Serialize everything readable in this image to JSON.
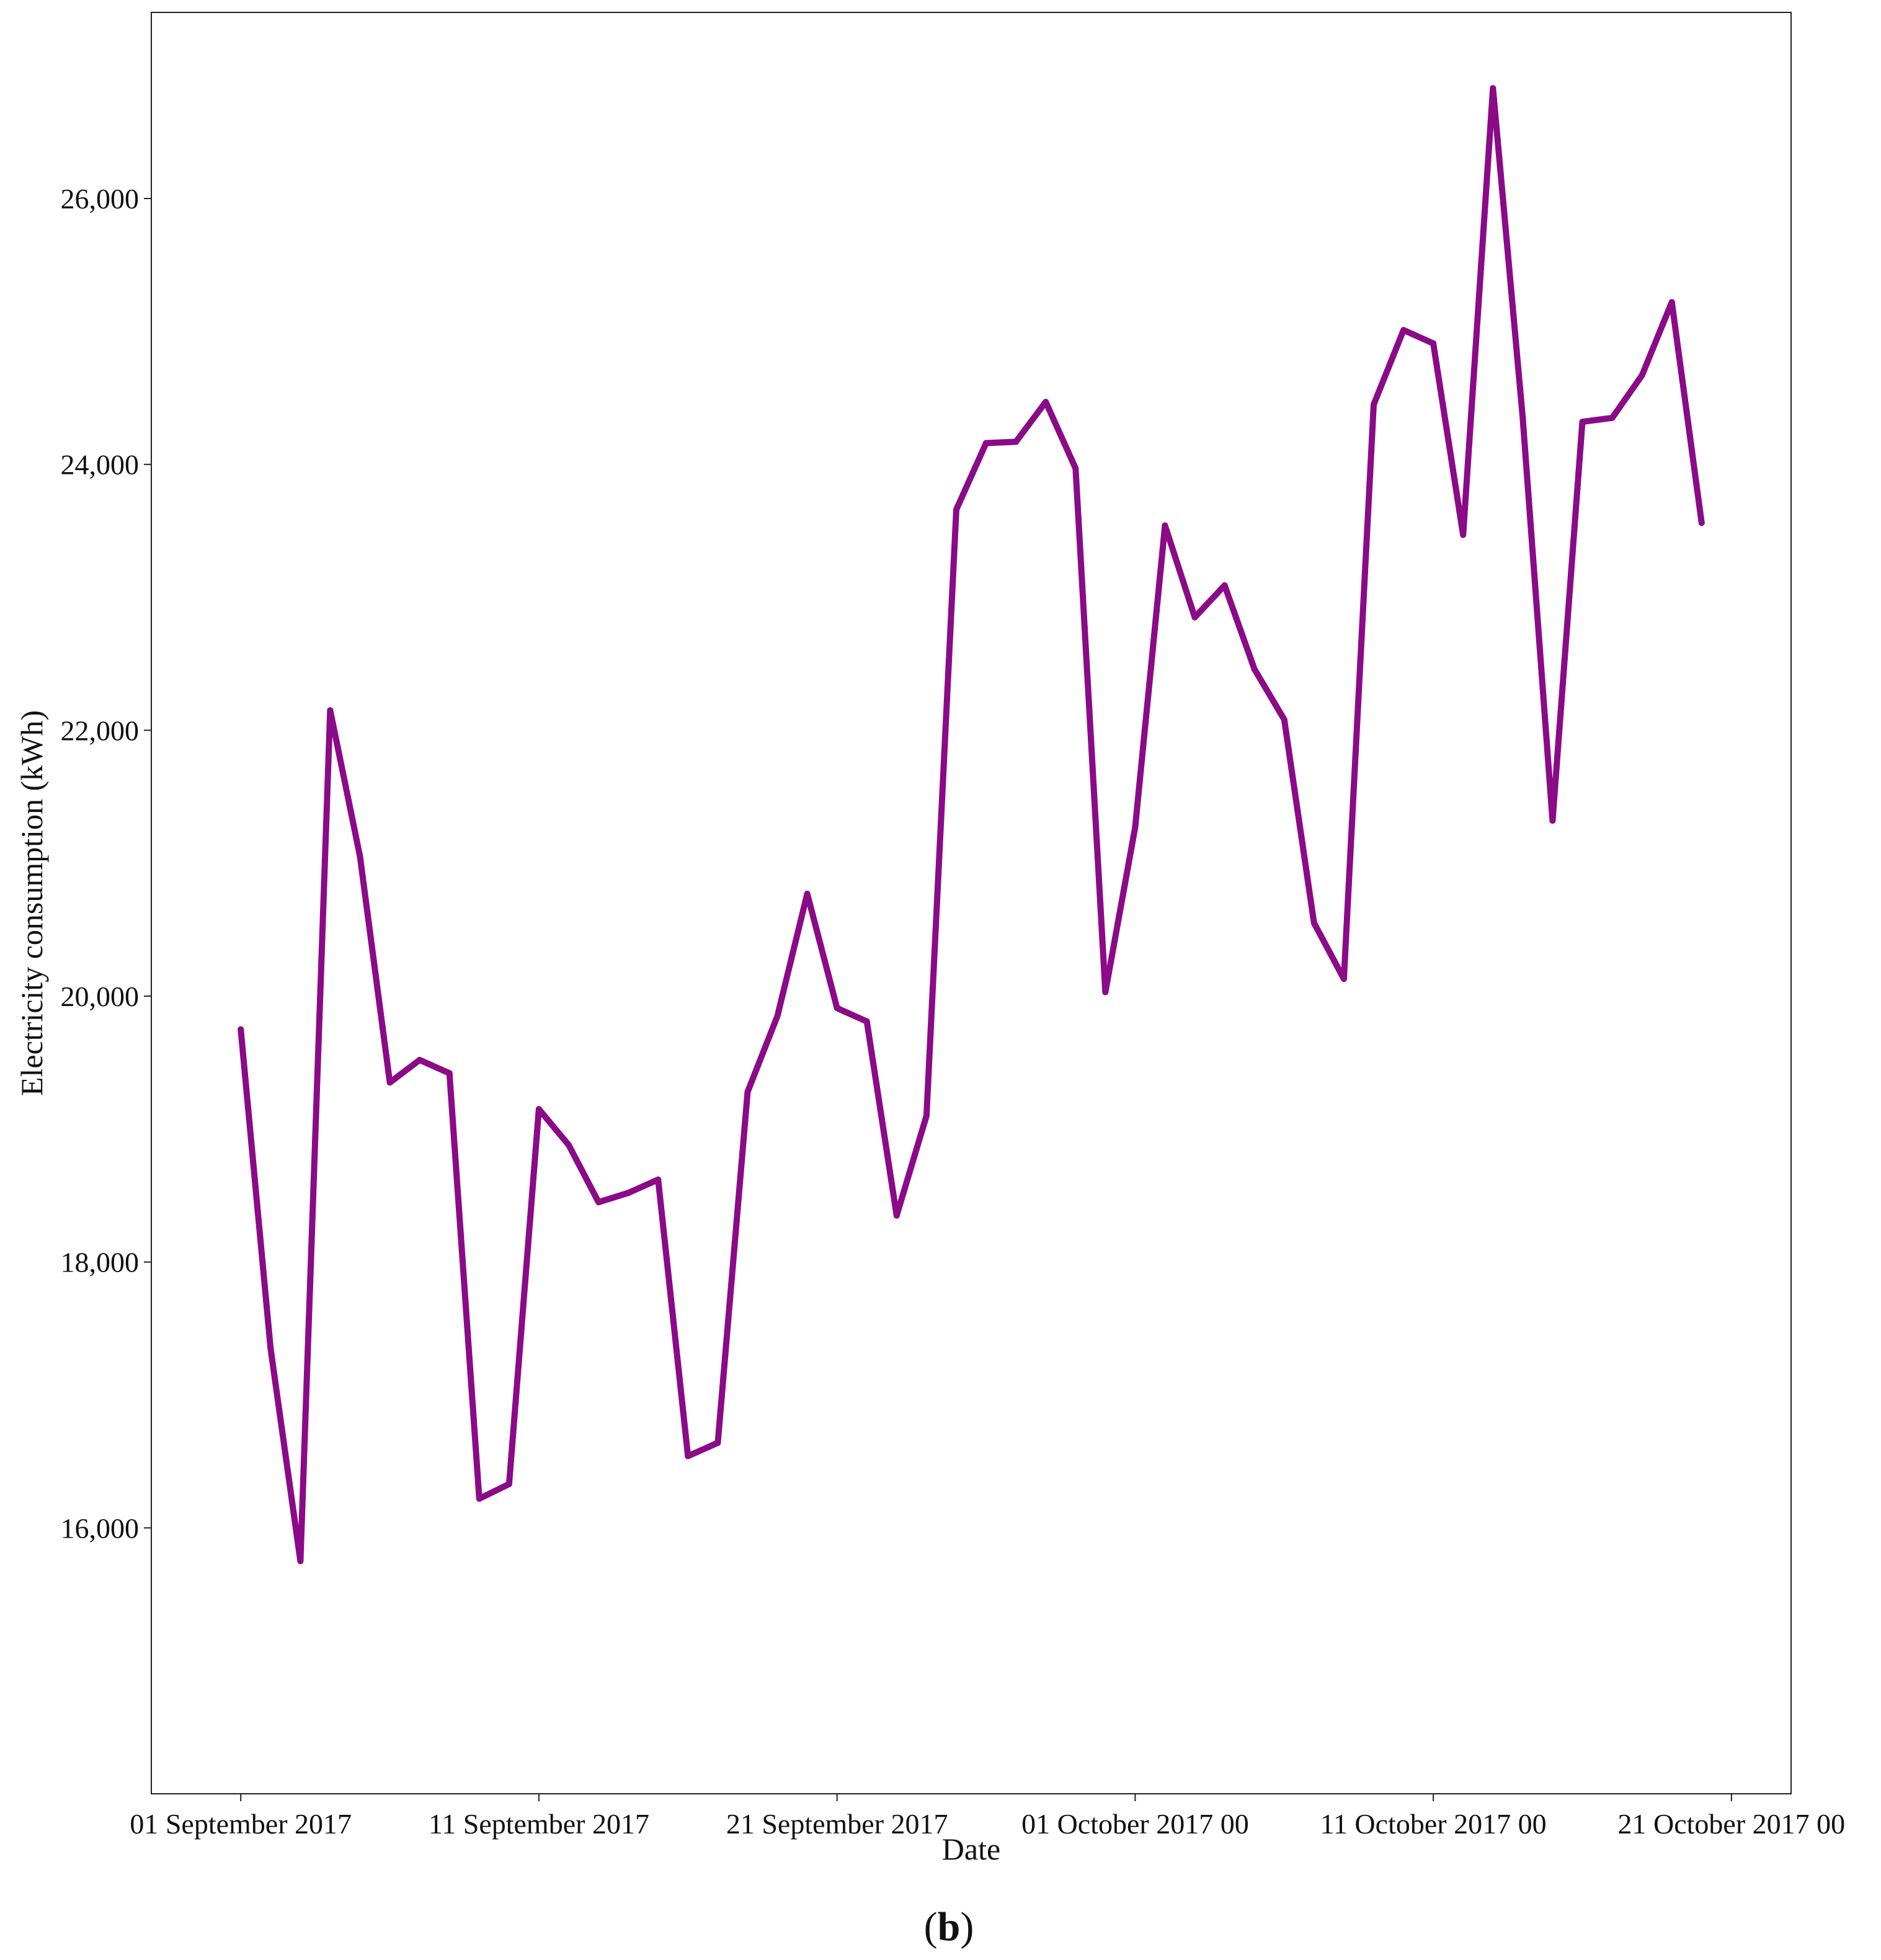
{
  "panel_label": {
    "open": "(",
    "letter": "b",
    "close": ")"
  },
  "chart_data": {
    "type": "line",
    "title": "",
    "xlabel": "Date",
    "ylabel": "Electricity consumption (kWh)",
    "ylim": [
      14000,
      27400
    ],
    "xlim": [
      "2017-08-29",
      "2017-10-23"
    ],
    "grid": false,
    "legend": "none",
    "line_color": "#8B0A87",
    "x_ticks": [
      {
        "date": "2017-09-01",
        "label": "01 September 2017"
      },
      {
        "date": "2017-09-11",
        "label": "11 September 2017"
      },
      {
        "date": "2017-09-21",
        "label": "21 September 2017"
      },
      {
        "date": "2017-10-01",
        "label": "01 October 2017 00"
      },
      {
        "date": "2017-10-11",
        "label": "11 October 2017 00"
      },
      {
        "date": "2017-10-21",
        "label": "21 October 2017 00"
      }
    ],
    "y_ticks": [
      {
        "value": 16000,
        "label": "16,000"
      },
      {
        "value": 18000,
        "label": "18,000"
      },
      {
        "value": 20000,
        "label": "20,000"
      },
      {
        "value": 22000,
        "label": "22,000"
      },
      {
        "value": 24000,
        "label": "24,000"
      },
      {
        "value": 26000,
        "label": "26,000"
      }
    ],
    "x": [
      "2017-09-01",
      "2017-09-02",
      "2017-09-03",
      "2017-09-04",
      "2017-09-05",
      "2017-09-06",
      "2017-09-07",
      "2017-09-08",
      "2017-09-09",
      "2017-09-10",
      "2017-09-11",
      "2017-09-12",
      "2017-09-13",
      "2017-09-14",
      "2017-09-15",
      "2017-09-16",
      "2017-09-17",
      "2017-09-18",
      "2017-09-19",
      "2017-09-20",
      "2017-09-21",
      "2017-09-22",
      "2017-09-23",
      "2017-09-24",
      "2017-09-25",
      "2017-09-26",
      "2017-09-27",
      "2017-09-28",
      "2017-09-29",
      "2017-09-30",
      "2017-10-01",
      "2017-10-02",
      "2017-10-03",
      "2017-10-04",
      "2017-10-05",
      "2017-10-06",
      "2017-10-07",
      "2017-10-08",
      "2017-10-09",
      "2017-10-10",
      "2017-10-11",
      "2017-10-12",
      "2017-10-13",
      "2017-10-14",
      "2017-10-15",
      "2017-10-16",
      "2017-10-17",
      "2017-10-18",
      "2017-10-19",
      "2017-10-20"
    ],
    "series": [
      {
        "values": [
          19750,
          17350,
          15750,
          22150,
          21050,
          19350,
          19520,
          19420,
          16220,
          16330,
          19150,
          18880,
          18450,
          18520,
          18620,
          16540,
          16640,
          19280,
          19850,
          20770,
          19910,
          19810,
          18350,
          19100,
          23660,
          24160,
          24170,
          24470,
          23970,
          20030,
          21270,
          23540,
          22850,
          23090,
          22460,
          22080,
          20550,
          20130,
          24450,
          25010,
          24910,
          23470,
          26830,
          24350,
          21320,
          24320,
          24350,
          24670,
          25220,
          23560
        ]
      }
    ]
  }
}
